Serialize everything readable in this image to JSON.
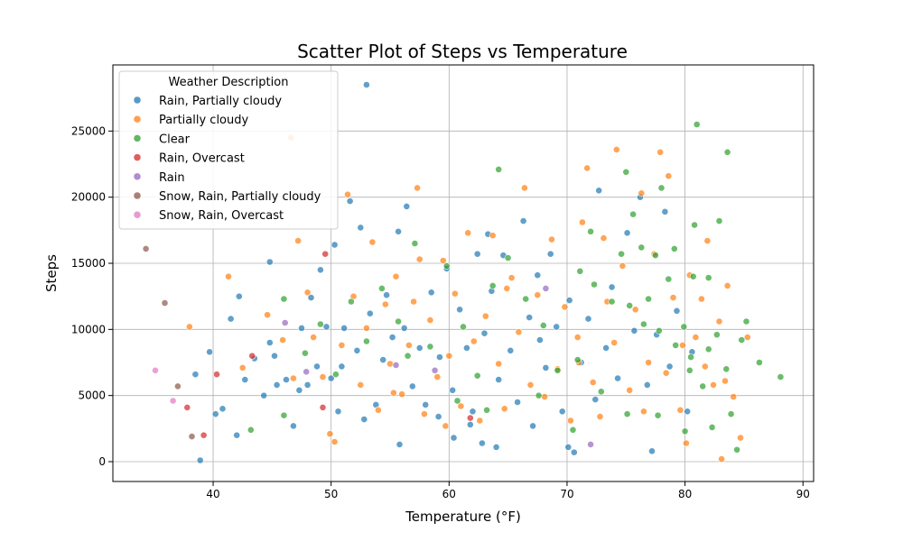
{
  "chart_data": {
    "type": "scatter",
    "title": "Scatter Plot of Steps vs Temperature",
    "xlabel": "Temperature (°F)",
    "ylabel": "Steps",
    "xlim": [
      31.5,
      90.9
    ],
    "ylim": [
      -1500,
      30000
    ],
    "xticks": [
      40,
      50,
      60,
      70,
      80,
      90
    ],
    "yticks": [
      0,
      5000,
      10000,
      15000,
      20000,
      25000
    ],
    "grid": true,
    "legend": {
      "title": "Weather Description",
      "placement": "top-left"
    },
    "series": [
      {
        "name": "Rain, Partially cloudy",
        "color": "#1f77b4",
        "points": [
          [
            53.0,
            28500
          ],
          [
            38.9,
            100
          ],
          [
            38.5,
            6600
          ],
          [
            39.7,
            8300
          ],
          [
            40.2,
            3600
          ],
          [
            41.5,
            10800
          ],
          [
            42.2,
            12500
          ],
          [
            42.0,
            2000
          ],
          [
            43.5,
            7800
          ],
          [
            44.3,
            5000
          ],
          [
            44.8,
            15100
          ],
          [
            44.8,
            9000
          ],
          [
            45.4,
            5800
          ],
          [
            46.2,
            6200
          ],
          [
            46.8,
            2700
          ],
          [
            47.3,
            5400
          ],
          [
            47.5,
            10100
          ],
          [
            48.0,
            5800
          ],
          [
            48.3,
            12400
          ],
          [
            48.8,
            7200
          ],
          [
            49.1,
            14500
          ],
          [
            49.6,
            10200
          ],
          [
            50.0,
            6300
          ],
          [
            50.3,
            16400
          ],
          [
            50.6,
            3800
          ],
          [
            51.1,
            10100
          ],
          [
            51.6,
            19700
          ],
          [
            52.2,
            8400
          ],
          [
            52.8,
            3200
          ],
          [
            53.3,
            11200
          ],
          [
            53.8,
            4300
          ],
          [
            54.4,
            7700
          ],
          [
            54.7,
            12600
          ],
          [
            55.2,
            9400
          ],
          [
            55.7,
            17400
          ],
          [
            55.8,
            1300
          ],
          [
            56.2,
            10100
          ],
          [
            56.9,
            5700
          ],
          [
            57.5,
            8600
          ],
          [
            58.0,
            4300
          ],
          [
            58.5,
            12800
          ],
          [
            59.2,
            7900
          ],
          [
            59.8,
            14600
          ],
          [
            60.3,
            5400
          ],
          [
            60.4,
            1800
          ],
          [
            60.9,
            11500
          ],
          [
            61.5,
            8600
          ],
          [
            62.0,
            3800
          ],
          [
            62.4,
            15700
          ],
          [
            62.8,
            1400
          ],
          [
            63.0,
            9700
          ],
          [
            63.6,
            12900
          ],
          [
            64.0,
            1100
          ],
          [
            64.2,
            6200
          ],
          [
            64.6,
            15600
          ],
          [
            65.2,
            8400
          ],
          [
            65.8,
            4500
          ],
          [
            66.3,
            18200
          ],
          [
            66.8,
            10900
          ],
          [
            67.1,
            2700
          ],
          [
            67.5,
            14100
          ],
          [
            68.2,
            7100
          ],
          [
            68.6,
            15700
          ],
          [
            69.1,
            10200
          ],
          [
            69.6,
            3800
          ],
          [
            70.2,
            12200
          ],
          [
            70.6,
            700
          ],
          [
            71.2,
            7500
          ],
          [
            71.8,
            10800
          ],
          [
            72.4,
            4700
          ],
          [
            72.7,
            20500
          ],
          [
            73.3,
            8600
          ],
          [
            73.8,
            13200
          ],
          [
            74.3,
            6300
          ],
          [
            75.1,
            17300
          ],
          [
            75.7,
            9900
          ],
          [
            76.2,
            20000
          ],
          [
            76.8,
            5800
          ],
          [
            77.2,
            800
          ],
          [
            77.6,
            9600
          ],
          [
            78.3,
            18900
          ],
          [
            78.7,
            7200
          ],
          [
            79.3,
            11400
          ],
          [
            80.2,
            3800
          ],
          [
            80.6,
            8300
          ],
          [
            40.8,
            4000
          ],
          [
            42.7,
            6200
          ],
          [
            45.2,
            8000
          ],
          [
            50.9,
            7200
          ],
          [
            52.5,
            17700
          ],
          [
            56.4,
            19300
          ],
          [
            59.1,
            3400
          ],
          [
            61.8,
            2800
          ],
          [
            63.3,
            17200
          ],
          [
            67.7,
            9200
          ],
          [
            70.1,
            1100
          ]
        ]
      },
      {
        "name": "Partially cloudy",
        "color": "#ff7f0e",
        "points": [
          [
            46.6,
            24500
          ],
          [
            38.0,
            10200
          ],
          [
            41.3,
            14000
          ],
          [
            42.5,
            7100
          ],
          [
            44.6,
            11100
          ],
          [
            45.9,
            9200
          ],
          [
            46.8,
            6300
          ],
          [
            47.2,
            16700
          ],
          [
            48.0,
            12800
          ],
          [
            48.5,
            9400
          ],
          [
            49.3,
            6400
          ],
          [
            49.9,
            2100
          ],
          [
            50.3,
            1500
          ],
          [
            50.9,
            8800
          ],
          [
            51.4,
            20200
          ],
          [
            51.9,
            12500
          ],
          [
            52.5,
            5800
          ],
          [
            53.0,
            10100
          ],
          [
            53.5,
            16600
          ],
          [
            54.0,
            3900
          ],
          [
            54.6,
            11900
          ],
          [
            55.0,
            7400
          ],
          [
            55.5,
            14000
          ],
          [
            56.0,
            5100
          ],
          [
            56.6,
            8800
          ],
          [
            57.0,
            12100
          ],
          [
            57.3,
            20700
          ],
          [
            57.9,
            3600
          ],
          [
            58.4,
            10700
          ],
          [
            59.0,
            6400
          ],
          [
            59.5,
            15200
          ],
          [
            60.0,
            8000
          ],
          [
            60.5,
            12700
          ],
          [
            61.0,
            4200
          ],
          [
            61.6,
            17300
          ],
          [
            62.1,
            9100
          ],
          [
            62.6,
            3100
          ],
          [
            63.1,
            11000
          ],
          [
            63.7,
            17100
          ],
          [
            64.2,
            7400
          ],
          [
            64.7,
            4000
          ],
          [
            65.3,
            13900
          ],
          [
            65.9,
            9800
          ],
          [
            66.4,
            20700
          ],
          [
            66.9,
            5800
          ],
          [
            67.5,
            12600
          ],
          [
            68.1,
            4900
          ],
          [
            68.7,
            16800
          ],
          [
            69.2,
            7000
          ],
          [
            69.8,
            11700
          ],
          [
            70.3,
            3100
          ],
          [
            70.9,
            9400
          ],
          [
            71.3,
            18100
          ],
          [
            71.7,
            22200
          ],
          [
            72.2,
            6000
          ],
          [
            72.8,
            3400
          ],
          [
            73.4,
            12100
          ],
          [
            74.0,
            9000
          ],
          [
            74.2,
            23600
          ],
          [
            74.7,
            14800
          ],
          [
            75.3,
            5400
          ],
          [
            75.8,
            11500
          ],
          [
            76.3,
            20300
          ],
          [
            76.9,
            7500
          ],
          [
            77.4,
            15700
          ],
          [
            77.9,
            23400
          ],
          [
            78.4,
            6700
          ],
          [
            78.6,
            21600
          ],
          [
            79.0,
            12400
          ],
          [
            79.6,
            3900
          ],
          [
            80.1,
            1400
          ],
          [
            80.4,
            14100
          ],
          [
            80.9,
            9400
          ],
          [
            81.4,
            12300
          ],
          [
            81.9,
            16700
          ],
          [
            82.4,
            5800
          ],
          [
            82.9,
            10600
          ],
          [
            83.1,
            200
          ],
          [
            83.6,
            13300
          ],
          [
            84.1,
            4900
          ],
          [
            84.7,
            1800
          ],
          [
            85.3,
            9400
          ],
          [
            57.5,
            15300
          ],
          [
            59.7,
            2700
          ],
          [
            64.9,
            13100
          ],
          [
            71.0,
            7500
          ],
          [
            73.1,
            16900
          ],
          [
            76.5,
            3800
          ],
          [
            79.8,
            8800
          ],
          [
            81.7,
            7200
          ],
          [
            83.4,
            6100
          ],
          [
            55.3,
            5200
          ]
        ]
      },
      {
        "name": "Clear",
        "color": "#2ca02c",
        "points": [
          [
            81.0,
            25500
          ],
          [
            83.6,
            23400
          ],
          [
            64.2,
            22100
          ],
          [
            75.0,
            21900
          ],
          [
            78.0,
            20700
          ],
          [
            80.8,
            17900
          ],
          [
            82.9,
            18200
          ],
          [
            75.6,
            18700
          ],
          [
            77.5,
            15600
          ],
          [
            79.1,
            16100
          ],
          [
            80.7,
            14000
          ],
          [
            82.0,
            13900
          ],
          [
            71.1,
            14400
          ],
          [
            72.3,
            13400
          ],
          [
            73.8,
            12100
          ],
          [
            75.3,
            11800
          ],
          [
            76.5,
            10400
          ],
          [
            77.8,
            9900
          ],
          [
            79.2,
            8800
          ],
          [
            80.5,
            7900
          ],
          [
            82.0,
            8500
          ],
          [
            83.5,
            7000
          ],
          [
            84.8,
            9200
          ],
          [
            86.3,
            7500
          ],
          [
            88.1,
            6400
          ],
          [
            85.2,
            10600
          ],
          [
            83.9,
            3600
          ],
          [
            82.3,
            2600
          ],
          [
            84.4,
            900
          ],
          [
            80.0,
            2300
          ],
          [
            77.7,
            3500
          ],
          [
            75.1,
            3600
          ],
          [
            70.5,
            2400
          ],
          [
            69.2,
            6900
          ],
          [
            68.0,
            10300
          ],
          [
            66.5,
            12300
          ],
          [
            65.0,
            15400
          ],
          [
            63.7,
            13300
          ],
          [
            62.4,
            6500
          ],
          [
            61.2,
            10200
          ],
          [
            59.8,
            14800
          ],
          [
            58.4,
            8700
          ],
          [
            57.1,
            16500
          ],
          [
            55.7,
            10600
          ],
          [
            54.3,
            13100
          ],
          [
            53.0,
            9100
          ],
          [
            51.7,
            12100
          ],
          [
            50.4,
            6600
          ],
          [
            49.1,
            10400
          ],
          [
            47.8,
            8200
          ],
          [
            46.0,
            12300
          ],
          [
            46.0,
            3500
          ],
          [
            43.2,
            2400
          ],
          [
            72.0,
            17400
          ],
          [
            74.6,
            15700
          ],
          [
            76.9,
            12300
          ],
          [
            78.6,
            13800
          ],
          [
            80.4,
            6900
          ],
          [
            82.7,
            9600
          ],
          [
            72.9,
            5300
          ],
          [
            67.6,
            5000
          ],
          [
            60.7,
            4600
          ],
          [
            56.5,
            8000
          ],
          [
            63.2,
            3900
          ],
          [
            79.9,
            10200
          ],
          [
            81.5,
            5700
          ],
          [
            76.3,
            16200
          ],
          [
            70.9,
            7700
          ]
        ]
      },
      {
        "name": "Rain, Overcast",
        "color": "#d62728",
        "points": [
          [
            49.5,
            15700
          ],
          [
            37.8,
            4100
          ],
          [
            39.2,
            2000
          ],
          [
            40.3,
            6600
          ],
          [
            43.3,
            8000
          ],
          [
            49.3,
            4100
          ],
          [
            61.8,
            3300
          ]
        ]
      },
      {
        "name": "Rain",
        "color": "#9467bd",
        "points": [
          [
            46.1,
            10500
          ],
          [
            47.9,
            6800
          ],
          [
            58.8,
            6900
          ],
          [
            68.2,
            13100
          ],
          [
            72.0,
            1300
          ],
          [
            55.5,
            7300
          ]
        ]
      },
      {
        "name": "Snow, Rain, Partially cloudy",
        "color": "#8c564b",
        "points": [
          [
            34.3,
            16100
          ],
          [
            35.9,
            12000
          ],
          [
            37.0,
            5700
          ],
          [
            38.2,
            1900
          ]
        ]
      },
      {
        "name": "Snow, Rain, Overcast",
        "color": "#e377c2",
        "points": [
          [
            35.1,
            6900
          ],
          [
            36.6,
            4600
          ]
        ]
      }
    ]
  }
}
